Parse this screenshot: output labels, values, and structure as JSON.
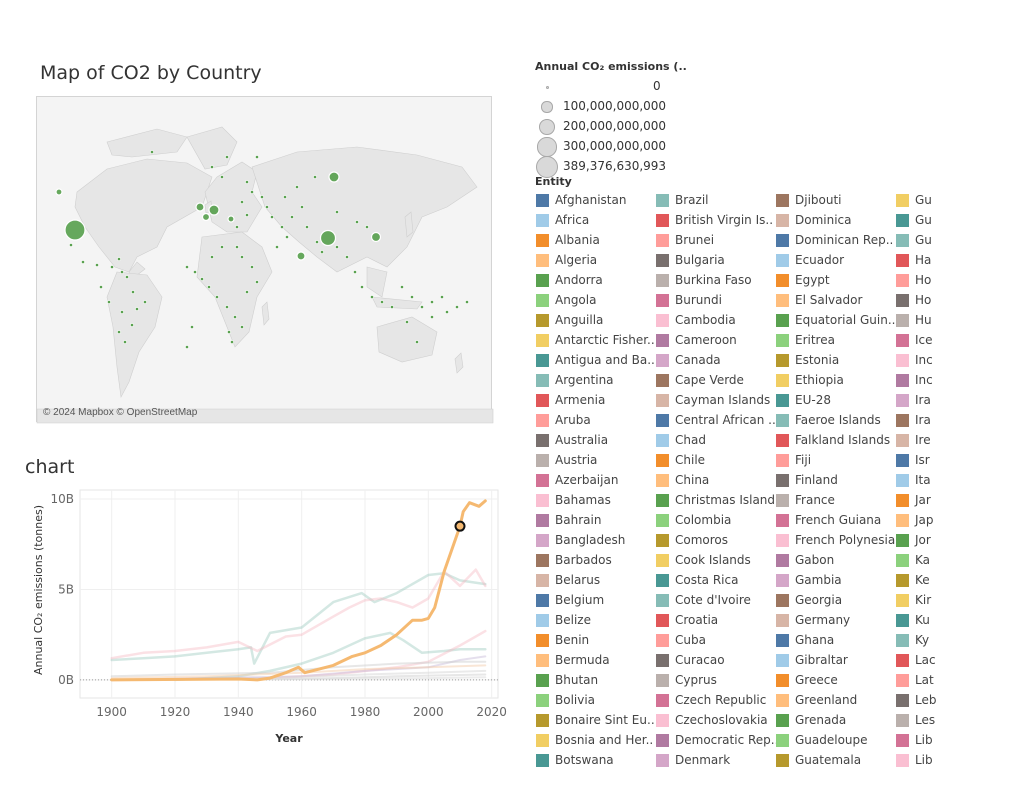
{
  "map": {
    "title": "Map of CO2 by Country",
    "credit": "© 2024 Mapbox © OpenStreetMap",
    "marker_color": "#59a14f"
  },
  "chart": {
    "title": "chart",
    "highlight_color": "#f5b971"
  },
  "chart_data": {
    "type": "line",
    "xlabel": "Year",
    "ylabel": "Annual CO₂ emissions (tonnes)",
    "xlim": [
      1890,
      2022
    ],
    "ylim": [
      -1000000000,
      10500000000
    ],
    "x_ticks": [
      {
        "value": 1900,
        "label": "1900"
      },
      {
        "value": 1920,
        "label": "1920"
      },
      {
        "value": 1940,
        "label": "1940"
      },
      {
        "value": 1960,
        "label": "1960"
      },
      {
        "value": 1980,
        "label": "1980"
      },
      {
        "value": 2000,
        "label": "2000"
      },
      {
        "value": 2020,
        "label": "2020"
      }
    ],
    "y_ticks": [
      {
        "value": 0,
        "label": "0B"
      },
      {
        "value": 5000000000,
        "label": "5B"
      },
      {
        "value": 10000000000,
        "label": "10B"
      }
    ],
    "series": [
      {
        "color": "#f5b971",
        "opacity": 1.0,
        "width": 3,
        "points": [
          [
            1900,
            0
          ],
          [
            1940,
            50000000
          ],
          [
            1946,
            0
          ],
          [
            1950,
            100000000
          ],
          [
            1955,
            400000000
          ],
          [
            1959,
            700000000
          ],
          [
            1961,
            400000000
          ],
          [
            1970,
            800000000
          ],
          [
            1976,
            1300000000
          ],
          [
            1980,
            1500000000
          ],
          [
            1985,
            1900000000
          ],
          [
            1990,
            2500000000
          ],
          [
            1995,
            3300000000
          ],
          [
            1998,
            3300000000
          ],
          [
            2000,
            3400000000
          ],
          [
            2002,
            4000000000
          ],
          [
            2005,
            6000000000
          ],
          [
            2008,
            7500000000
          ],
          [
            2010,
            8500000000
          ],
          [
            2011,
            9300000000
          ],
          [
            2013,
            9800000000
          ],
          [
            2016,
            9600000000
          ],
          [
            2018,
            9900000000
          ]
        ]
      },
      {
        "color": "#a0cbc0",
        "opacity": 0.45,
        "width": 2.5,
        "points": [
          [
            1900,
            1100000000
          ],
          [
            1910,
            1200000000
          ],
          [
            1920,
            1300000000
          ],
          [
            1930,
            1500000000
          ],
          [
            1940,
            1700000000
          ],
          [
            1944,
            1800000000
          ],
          [
            1945,
            900000000
          ],
          [
            1950,
            2600000000
          ],
          [
            1960,
            2900000000
          ],
          [
            1970,
            4300000000
          ],
          [
            1979,
            4800000000
          ],
          [
            1983,
            4300000000
          ],
          [
            1990,
            4800000000
          ],
          [
            2000,
            5800000000
          ],
          [
            2005,
            5900000000
          ],
          [
            2010,
            5500000000
          ],
          [
            2018,
            5300000000
          ]
        ]
      },
      {
        "color": "#f4b4bf",
        "opacity": 0.4,
        "width": 2.5,
        "points": [
          [
            1900,
            1200000000
          ],
          [
            1910,
            1500000000
          ],
          [
            1920,
            1600000000
          ],
          [
            1930,
            1800000000
          ],
          [
            1940,
            2100000000
          ],
          [
            1946,
            1600000000
          ],
          [
            1955,
            2400000000
          ],
          [
            1960,
            2500000000
          ],
          [
            1970,
            3500000000
          ],
          [
            1975,
            4000000000
          ],
          [
            1980,
            4400000000
          ],
          [
            1985,
            4500000000
          ],
          [
            1990,
            4300000000
          ],
          [
            1995,
            4000000000
          ],
          [
            2000,
            4500000000
          ],
          [
            2005,
            6000000000
          ],
          [
            2010,
            5200000000
          ],
          [
            2015,
            6100000000
          ],
          [
            2018,
            5200000000
          ]
        ]
      },
      {
        "color": "#a0cbc0",
        "opacity": 0.45,
        "width": 2.5,
        "points": [
          [
            1920,
            0
          ],
          [
            1930,
            100000000
          ],
          [
            1940,
            200000000
          ],
          [
            1950,
            500000000
          ],
          [
            1960,
            900000000
          ],
          [
            1970,
            1500000000
          ],
          [
            1980,
            2300000000
          ],
          [
            1988,
            2600000000
          ],
          [
            1992,
            2200000000
          ],
          [
            1998,
            1500000000
          ],
          [
            2005,
            1600000000
          ],
          [
            2010,
            1700000000
          ],
          [
            2018,
            1700000000
          ]
        ]
      },
      {
        "color": "#f4b4bf",
        "opacity": 0.4,
        "width": 2.5,
        "points": [
          [
            1900,
            0
          ],
          [
            1950,
            100000000
          ],
          [
            1970,
            300000000
          ],
          [
            1990,
            700000000
          ],
          [
            2000,
            1000000000
          ],
          [
            2010,
            1900000000
          ],
          [
            2018,
            2700000000
          ]
        ]
      },
      {
        "color": "#c6b9d6",
        "opacity": 0.45,
        "width": 2,
        "points": [
          [
            1900,
            0
          ],
          [
            1960,
            200000000
          ],
          [
            1980,
            500000000
          ],
          [
            2000,
            700000000
          ],
          [
            2010,
            1100000000
          ],
          [
            2018,
            1300000000
          ]
        ]
      },
      {
        "color": "#d0d0d0",
        "opacity": 0.5,
        "width": 2,
        "points": [
          [
            1900,
            200000000
          ],
          [
            1920,
            300000000
          ],
          [
            1950,
            400000000
          ],
          [
            1970,
            700000000
          ],
          [
            1990,
            900000000
          ],
          [
            2010,
            1000000000
          ],
          [
            2018,
            1000000000
          ]
        ]
      },
      {
        "color": "#f1c7a5",
        "opacity": 0.45,
        "width": 2,
        "points": [
          [
            1900,
            100000000
          ],
          [
            1930,
            200000000
          ],
          [
            1960,
            400000000
          ],
          [
            1980,
            600000000
          ],
          [
            2000,
            700000000
          ],
          [
            2018,
            800000000
          ]
        ]
      },
      {
        "color": "#d6d6d6",
        "opacity": 0.5,
        "width": 2,
        "points": [
          [
            1900,
            0
          ],
          [
            1950,
            100000000
          ],
          [
            1980,
            300000000
          ],
          [
            2000,
            400000000
          ],
          [
            2018,
            500000000
          ]
        ]
      },
      {
        "color": "#cfcfcf",
        "opacity": 0.5,
        "width": 2,
        "points": [
          [
            1900,
            0
          ],
          [
            1960,
            50000000
          ],
          [
            1990,
            200000000
          ],
          [
            2018,
            300000000
          ]
        ]
      },
      {
        "color": "#e0e0e0",
        "opacity": 0.6,
        "width": 2,
        "points": [
          [
            1900,
            0
          ],
          [
            2000,
            100000000
          ],
          [
            2018,
            150000000
          ]
        ]
      }
    ],
    "highlight_point": {
      "x": 2010,
      "y": 8500000000
    }
  },
  "size_legend": {
    "title": "Annual CO₂ emissions (..",
    "items": [
      {
        "label": "0",
        "value": 0
      },
      {
        "label": "100,000,000,000",
        "value": 100000000000
      },
      {
        "label": "200,000,000,000",
        "value": 200000000000
      },
      {
        "label": "300,000,000,000",
        "value": 300000000000
      },
      {
        "label": "389,376,630,993",
        "value": 389376630993
      }
    ]
  },
  "entity_legend": {
    "title": "Entity",
    "columns": [
      [
        {
          "name": "Afghanistan",
          "color": "#4e79a7"
        },
        {
          "name": "Africa",
          "color": "#a0cbe8"
        },
        {
          "name": "Albania",
          "color": "#f28e2b"
        },
        {
          "name": "Algeria",
          "color": "#ffbe7d"
        },
        {
          "name": "Andorra",
          "color": "#59a14f"
        },
        {
          "name": "Angola",
          "color": "#8cd17d"
        },
        {
          "name": "Anguilla",
          "color": "#b6992d"
        },
        {
          "name": "Antarctic Fisher..",
          "color": "#f1ce63"
        },
        {
          "name": "Antigua and Ba..",
          "color": "#499894"
        },
        {
          "name": "Argentina",
          "color": "#86bcb6"
        },
        {
          "name": "Armenia",
          "color": "#e15759"
        },
        {
          "name": "Aruba",
          "color": "#ff9d9a"
        },
        {
          "name": "Australia",
          "color": "#79706e"
        },
        {
          "name": "Austria",
          "color": "#bab0ac"
        },
        {
          "name": "Azerbaijan",
          "color": "#d37295"
        },
        {
          "name": "Bahamas",
          "color": "#fabfd2"
        },
        {
          "name": "Bahrain",
          "color": "#b07aa1"
        },
        {
          "name": "Bangladesh",
          "color": "#d4a6c8"
        },
        {
          "name": "Barbados",
          "color": "#9d7660"
        },
        {
          "name": "Belarus",
          "color": "#d7b5a6"
        },
        {
          "name": "Belgium",
          "color": "#4e79a7"
        },
        {
          "name": "Belize",
          "color": "#a0cbe8"
        },
        {
          "name": "Benin",
          "color": "#f28e2b"
        },
        {
          "name": "Bermuda",
          "color": "#ffbe7d"
        },
        {
          "name": "Bhutan",
          "color": "#59a14f"
        },
        {
          "name": "Bolivia",
          "color": "#8cd17d"
        },
        {
          "name": "Bonaire Sint Eu..",
          "color": "#b6992d"
        },
        {
          "name": "Bosnia and Her..",
          "color": "#f1ce63"
        },
        {
          "name": "Botswana",
          "color": "#499894"
        }
      ],
      [
        {
          "name": "Brazil",
          "color": "#86bcb6"
        },
        {
          "name": "British Virgin Is..",
          "color": "#e15759"
        },
        {
          "name": "Brunei",
          "color": "#ff9d9a"
        },
        {
          "name": "Bulgaria",
          "color": "#79706e"
        },
        {
          "name": "Burkina Faso",
          "color": "#bab0ac"
        },
        {
          "name": "Burundi",
          "color": "#d37295"
        },
        {
          "name": "Cambodia",
          "color": "#fabfd2"
        },
        {
          "name": "Cameroon",
          "color": "#b07aa1"
        },
        {
          "name": "Canada",
          "color": "#d4a6c8"
        },
        {
          "name": "Cape Verde",
          "color": "#9d7660"
        },
        {
          "name": "Cayman Islands",
          "color": "#d7b5a6"
        },
        {
          "name": "Central African ..",
          "color": "#4e79a7"
        },
        {
          "name": "Chad",
          "color": "#a0cbe8"
        },
        {
          "name": "Chile",
          "color": "#f28e2b"
        },
        {
          "name": "China",
          "color": "#ffbe7d"
        },
        {
          "name": "Christmas Island",
          "color": "#59a14f"
        },
        {
          "name": "Colombia",
          "color": "#8cd17d"
        },
        {
          "name": "Comoros",
          "color": "#b6992d"
        },
        {
          "name": "Cook Islands",
          "color": "#f1ce63"
        },
        {
          "name": "Costa Rica",
          "color": "#499894"
        },
        {
          "name": "Cote d'Ivoire",
          "color": "#86bcb6"
        },
        {
          "name": "Croatia",
          "color": "#e15759"
        },
        {
          "name": "Cuba",
          "color": "#ff9d9a"
        },
        {
          "name": "Curacao",
          "color": "#79706e"
        },
        {
          "name": "Cyprus",
          "color": "#bab0ac"
        },
        {
          "name": "Czech Republic",
          "color": "#d37295"
        },
        {
          "name": "Czechoslovakia",
          "color": "#fabfd2"
        },
        {
          "name": "Democratic Rep..",
          "color": "#b07aa1"
        },
        {
          "name": "Denmark",
          "color": "#d4a6c8"
        }
      ],
      [
        {
          "name": "Djibouti",
          "color": "#9d7660"
        },
        {
          "name": "Dominica",
          "color": "#d7b5a6"
        },
        {
          "name": "Dominican Rep..",
          "color": "#4e79a7"
        },
        {
          "name": "Ecuador",
          "color": "#a0cbe8"
        },
        {
          "name": "Egypt",
          "color": "#f28e2b"
        },
        {
          "name": "El Salvador",
          "color": "#ffbe7d"
        },
        {
          "name": "Equatorial Guin..",
          "color": "#59a14f"
        },
        {
          "name": "Eritrea",
          "color": "#8cd17d"
        },
        {
          "name": "Estonia",
          "color": "#b6992d"
        },
        {
          "name": "Ethiopia",
          "color": "#f1ce63"
        },
        {
          "name": "EU-28",
          "color": "#499894"
        },
        {
          "name": "Faeroe Islands",
          "color": "#86bcb6"
        },
        {
          "name": "Falkland Islands",
          "color": "#e15759"
        },
        {
          "name": "Fiji",
          "color": "#ff9d9a"
        },
        {
          "name": "Finland",
          "color": "#79706e"
        },
        {
          "name": "France",
          "color": "#bab0ac"
        },
        {
          "name": "French Guiana",
          "color": "#d37295"
        },
        {
          "name": "French Polynesia",
          "color": "#fabfd2"
        },
        {
          "name": "Gabon",
          "color": "#b07aa1"
        },
        {
          "name": "Gambia",
          "color": "#d4a6c8"
        },
        {
          "name": "Georgia",
          "color": "#9d7660"
        },
        {
          "name": "Germany",
          "color": "#d7b5a6"
        },
        {
          "name": "Ghana",
          "color": "#4e79a7"
        },
        {
          "name": "Gibraltar",
          "color": "#a0cbe8"
        },
        {
          "name": "Greece",
          "color": "#f28e2b"
        },
        {
          "name": "Greenland",
          "color": "#ffbe7d"
        },
        {
          "name": "Grenada",
          "color": "#59a14f"
        },
        {
          "name": "Guadeloupe",
          "color": "#8cd17d"
        },
        {
          "name": "Guatemala",
          "color": "#b6992d"
        }
      ],
      [
        {
          "name": "Gu",
          "color": "#f1ce63"
        },
        {
          "name": "Gu",
          "color": "#499894"
        },
        {
          "name": "Gu",
          "color": "#86bcb6"
        },
        {
          "name": "Ha",
          "color": "#e15759"
        },
        {
          "name": "Ho",
          "color": "#ff9d9a"
        },
        {
          "name": "Ho",
          "color": "#79706e"
        },
        {
          "name": "Hu",
          "color": "#bab0ac"
        },
        {
          "name": "Ice",
          "color": "#d37295"
        },
        {
          "name": "Inc",
          "color": "#fabfd2"
        },
        {
          "name": "Inc",
          "color": "#b07aa1"
        },
        {
          "name": "Ira",
          "color": "#d4a6c8"
        },
        {
          "name": "Ira",
          "color": "#9d7660"
        },
        {
          "name": "Ire",
          "color": "#d7b5a6"
        },
        {
          "name": "Isr",
          "color": "#4e79a7"
        },
        {
          "name": "Ita",
          "color": "#a0cbe8"
        },
        {
          "name": "Jar",
          "color": "#f28e2b"
        },
        {
          "name": "Jap",
          "color": "#ffbe7d"
        },
        {
          "name": "Jor",
          "color": "#59a14f"
        },
        {
          "name": "Ka",
          "color": "#8cd17d"
        },
        {
          "name": "Ke",
          "color": "#b6992d"
        },
        {
          "name": "Kir",
          "color": "#f1ce63"
        },
        {
          "name": "Ku",
          "color": "#499894"
        },
        {
          "name": "Ky",
          "color": "#86bcb6"
        },
        {
          "name": "Lac",
          "color": "#e15759"
        },
        {
          "name": "Lat",
          "color": "#ff9d9a"
        },
        {
          "name": "Leb",
          "color": "#79706e"
        },
        {
          "name": "Les",
          "color": "#bab0ac"
        },
        {
          "name": "Lib",
          "color": "#d37295"
        },
        {
          "name": "Lib",
          "color": "#fabfd2"
        }
      ]
    ]
  }
}
